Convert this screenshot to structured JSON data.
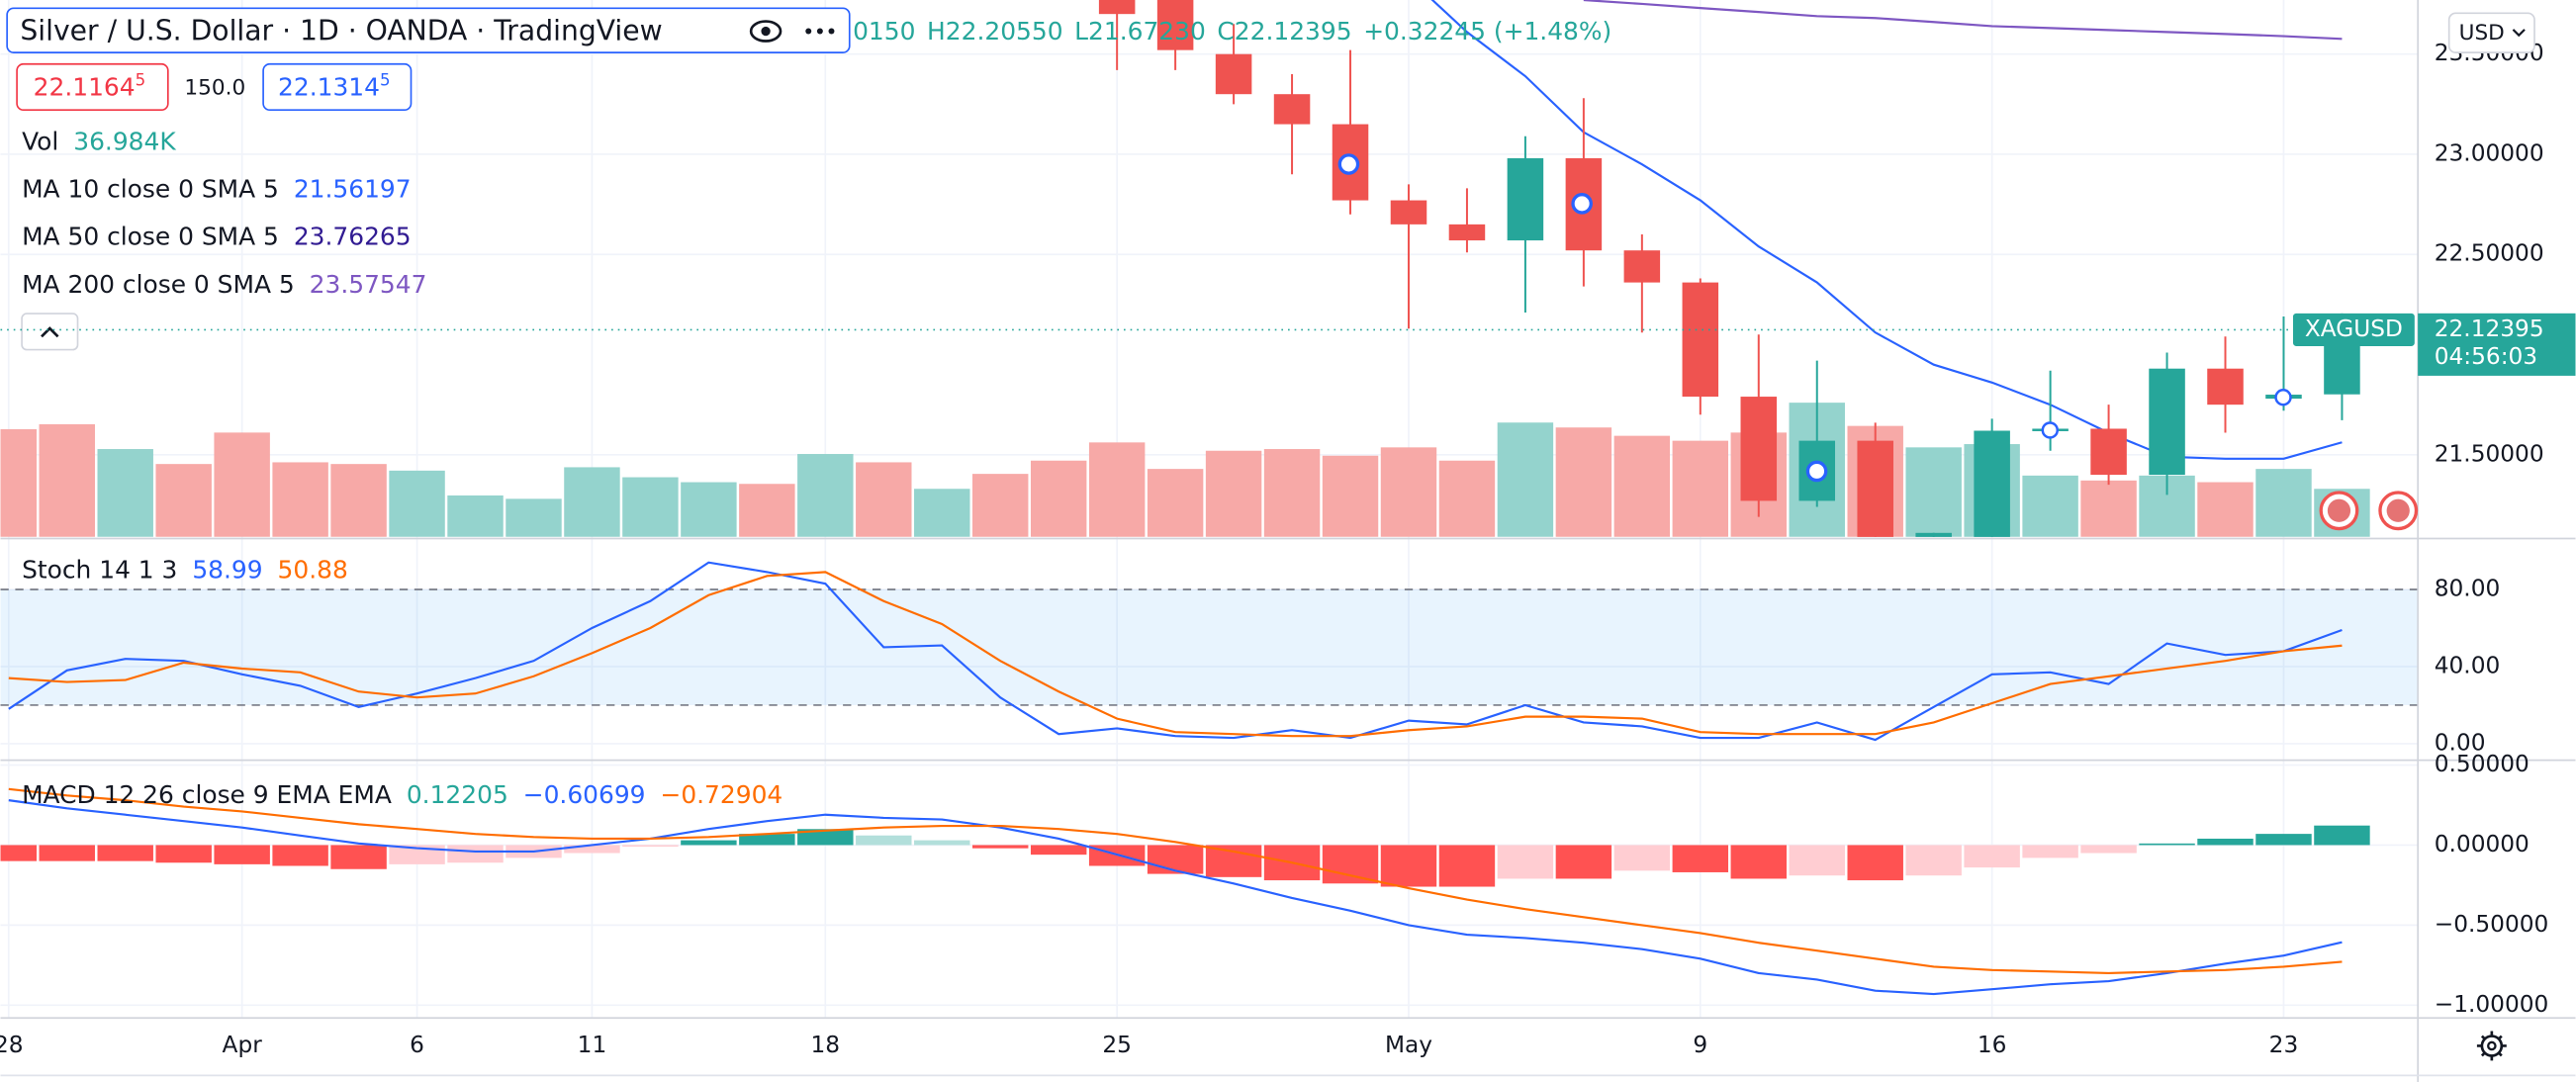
{
  "header": {
    "title": "Silver / U.S. Dollar · 1D · OANDA · TradingView",
    "ohlc": [
      "0150",
      "H22.20550",
      "L21.67230",
      "C22.12395",
      "+0.32245 (+1.48%)"
    ],
    "currency": "USD"
  },
  "quote": {
    "bid": "22.1164",
    "bid_sup": "5",
    "spread": "150.0",
    "ask": "22.1314",
    "ask_sup": "5"
  },
  "chart_data": [
    {
      "type": "candlestick",
      "categories": [
        "28",
        null,
        null,
        null,
        "Apr",
        null,
        null,
        "6",
        null,
        null,
        "11",
        null,
        null,
        null,
        "18",
        null,
        null,
        null,
        null,
        "25",
        null,
        null,
        null,
        null,
        "May",
        null,
        null,
        null,
        null,
        "9",
        null,
        null,
        null,
        null,
        "16",
        null,
        null,
        null,
        null,
        "23",
        null
      ],
      "open": [
        null,
        null,
        null,
        null,
        null,
        null,
        null,
        null,
        null,
        null,
        null,
        null,
        null,
        null,
        null,
        null,
        null,
        null,
        null,
        23.85,
        23.9,
        23.5,
        23.3,
        23.15,
        22.77,
        22.65,
        22.57,
        22.98,
        22.52,
        22.36,
        21.79,
        21.27,
        21.57,
        21.0,
        21.05,
        21.62,
        21.63,
        21.4,
        21.93,
        21.78,
        21.8015
      ],
      "high": [
        null,
        null,
        null,
        null,
        null,
        null,
        null,
        null,
        null,
        null,
        null,
        null,
        null,
        null,
        null,
        null,
        null,
        null,
        null,
        23.95,
        23.95,
        23.65,
        23.4,
        23.52,
        22.85,
        22.83,
        23.09,
        23.28,
        22.6,
        22.38,
        22.1,
        21.97,
        21.66,
        21.11,
        21.68,
        21.92,
        21.75,
        22.01,
        22.09,
        22.19,
        22.2055
      ],
      "low": [
        null,
        null,
        null,
        null,
        null,
        null,
        null,
        null,
        null,
        null,
        null,
        null,
        null,
        null,
        null,
        null,
        null,
        null,
        null,
        23.42,
        23.42,
        23.25,
        22.9,
        22.7,
        22.13,
        22.51,
        22.21,
        22.34,
        22.11,
        21.7,
        21.19,
        21.24,
        20.9,
        20.9,
        20.95,
        21.52,
        21.35,
        21.3,
        21.61,
        21.72,
        21.6723
      ],
      "close": [
        null,
        null,
        null,
        null,
        null,
        null,
        null,
        null,
        null,
        null,
        null,
        null,
        null,
        null,
        null,
        null,
        null,
        null,
        null,
        23.7,
        23.52,
        23.3,
        23.15,
        22.77,
        22.65,
        22.57,
        22.98,
        22.52,
        22.36,
        21.79,
        21.27,
        21.57,
        21.0,
        21.11,
        21.62,
        21.63,
        21.4,
        21.93,
        21.75,
        21.8,
        22.12395
      ],
      "up_color": "#26a69a",
      "down_color": "#ef5350",
      "ylim": [
        21.09,
        23.77
      ],
      "yticks": [
        {
          "value": 23.5,
          "label": "23.50000"
        },
        {
          "value": 23,
          "label": "23.00000"
        },
        {
          "value": 22.5,
          "label": "22.50000"
        },
        {
          "value": 21.5,
          "label": "21.50000"
        }
      ],
      "grid": true,
      "last_price": 22.12395,
      "last_label": {
        "symbol": "XAGUSD",
        "price": "22.12395",
        "countdown": "04:56:03"
      },
      "volume": {
        "values": [
          82.9,
          86.7,
          67.6,
          56.1,
          80.3,
          57.4,
          56.1,
          51.0,
          31.9,
          29.3,
          53.6,
          45.9,
          42.1,
          40.8,
          63.8,
          57.4,
          37.0,
          48.5,
          58.7,
          72.7,
          52.3,
          66.3,
          67.6,
          62.5,
          68.9,
          58.7,
          88.0,
          84.2,
          77.8,
          74.0,
          80.3,
          103.3,
          85.4,
          68.9,
          71.4,
          47.2,
          43.4,
          47.2,
          42.1,
          52.3,
          36.984
        ],
        "colors": [
          "#f7a9a7",
          "#f7a9a7",
          "#94d3cd",
          "#f7a9a7",
          "#f7a9a7",
          "#f7a9a7",
          "#f7a9a7",
          "#94d3cd",
          "#94d3cd",
          "#94d3cd",
          "#94d3cd",
          "#94d3cd",
          "#94d3cd",
          "#f7a9a7",
          "#94d3cd",
          "#f7a9a7",
          "#94d3cd",
          "#f7a9a7",
          "#f7a9a7",
          "#f7a9a7",
          "#f7a9a7",
          "#f7a9a7",
          "#f7a9a7",
          "#f7a9a7",
          "#f7a9a7",
          "#f7a9a7",
          "#94d3cd",
          "#f7a9a7",
          "#f7a9a7",
          "#f7a9a7",
          "#f7a9a7",
          "#94d3cd",
          "#f7a9a7",
          "#94d3cd",
          "#94d3cd",
          "#94d3cd",
          "#f7a9a7",
          "#94d3cd",
          "#f7a9a7",
          "#94d3cd",
          "#94d3cd"
        ]
      },
      "series": [
        {
          "color": "#2962ff",
          "values": [
            null,
            null,
            null,
            null,
            null,
            null,
            null,
            null,
            null,
            null,
            null,
            null,
            null,
            null,
            null,
            null,
            null,
            null,
            null,
            null,
            null,
            null,
            null,
            null,
            23.88,
            23.61,
            23.39,
            23.11,
            22.95,
            22.77,
            22.54,
            22.36,
            22.11,
            21.95,
            21.86,
            21.75,
            21.61,
            21.49,
            21.48,
            21.48,
            21.56197
          ]
        },
        {
          "color": "#7e57c2",
          "values": [
            null,
            null,
            null,
            null,
            null,
            null,
            null,
            null,
            null,
            null,
            null,
            null,
            null,
            null,
            null,
            null,
            null,
            null,
            null,
            null,
            null,
            null,
            null,
            null,
            null,
            null,
            null,
            23.77,
            23.75,
            23.73,
            23.71,
            23.69,
            23.68,
            23.66,
            23.64,
            23.63,
            23.62,
            23.61,
            23.6,
            23.59,
            23.57547
          ]
        }
      ],
      "legend": [
        {
          "label": "Vol",
          "value": "36.984K",
          "color": "#26a69a"
        },
        {
          "label": "MA 10 close 0 SMA 5",
          "value": "21.56197",
          "color": "#2962ff"
        },
        {
          "label": "MA 50 close 0 SMA 5",
          "value": "23.76265",
          "color": "#311b92"
        },
        {
          "label": "MA 200 close 0 SMA 5",
          "value": "23.57547",
          "color": "#7e57c2"
        }
      ]
    },
    {
      "type": "line",
      "ylim": [
        -7.7,
        104.7
      ],
      "yticks": [
        {
          "value": 80,
          "label": "80.00"
        },
        {
          "value": 40,
          "label": "40.00"
        },
        {
          "value": 0,
          "label": "0.00"
        }
      ],
      "grid": true,
      "bands": [
        80,
        20
      ],
      "band_fill": "rgba(33,150,243,0.1)",
      "series": [
        {
          "color": "#2962ff",
          "values": [
            18,
            38,
            44,
            43,
            36,
            30,
            19,
            26,
            34,
            43,
            60,
            74,
            94,
            89,
            83,
            50,
            51,
            24,
            5,
            8,
            4,
            3,
            7,
            3,
            12,
            10,
            20,
            11,
            9,
            3,
            3,
            11,
            2,
            19,
            36,
            37,
            31,
            52,
            46,
            48,
            58.99
          ]
        },
        {
          "color": "#ff6d00",
          "values": [
            34,
            32,
            33,
            42,
            39,
            37,
            27,
            24,
            26,
            35,
            47,
            60,
            77,
            87,
            89,
            74,
            62,
            43,
            27,
            13,
            6,
            5,
            4,
            4,
            7,
            9,
            14,
            14,
            13,
            6,
            5,
            5,
            5,
            11,
            21,
            31,
            35,
            39,
            43,
            48,
            50.88
          ]
        }
      ],
      "legend": {
        "label": "Stoch 14 1 3",
        "values": [
          "58.99",
          "50.88"
        ]
      }
    },
    {
      "type": "macd",
      "ylim": [
        -1.08,
        0.52
      ],
      "yticks": [
        {
          "value": 0.5,
          "label": "0.50000"
        },
        {
          "value": 0,
          "label": "0.00000"
        },
        {
          "value": -0.5,
          "label": "−0.50000"
        },
        {
          "value": -1,
          "label": "−1.00000"
        }
      ],
      "grid": true,
      "histogram": [
        -0.1,
        -0.1,
        -0.1,
        -0.11,
        -0.12,
        -0.13,
        -0.15,
        -0.12,
        -0.11,
        -0.08,
        -0.05,
        -0.01,
        0.03,
        0.07,
        0.1,
        0.06,
        0.03,
        -0.02,
        -0.06,
        -0.13,
        -0.18,
        -0.2,
        -0.22,
        -0.24,
        -0.26,
        -0.26,
        -0.21,
        -0.21,
        -0.16,
        -0.17,
        -0.21,
        -0.19,
        -0.22,
        -0.19,
        -0.14,
        -0.08,
        -0.05,
        0.01,
        0.04,
        0.07,
        0.12205
      ],
      "histogram_colors": {
        "rise_above": "#26a69a",
        "fall_above": "#b2dfdb",
        "fall_below": "#ff5252",
        "rise_below": "#ffcdd2"
      },
      "series": [
        {
          "color": "#2962ff",
          "values": [
            0.28,
            0.23,
            0.19,
            0.15,
            0.11,
            0.06,
            0.01,
            -0.02,
            -0.04,
            -0.04,
            0.0,
            0.04,
            0.1,
            0.15,
            0.19,
            0.17,
            0.16,
            0.11,
            0.04,
            -0.06,
            -0.16,
            -0.24,
            -0.33,
            -0.41,
            -0.5,
            -0.56,
            -0.58,
            -0.61,
            -0.65,
            -0.71,
            -0.8,
            -0.84,
            -0.91,
            -0.93,
            -0.9,
            -0.87,
            -0.85,
            -0.8,
            -0.74,
            -0.69,
            -0.60699
          ]
        },
        {
          "color": "#ff6d00",
          "values": [
            0.35,
            0.31,
            0.28,
            0.24,
            0.21,
            0.17,
            0.13,
            0.1,
            0.07,
            0.05,
            0.04,
            0.04,
            0.05,
            0.07,
            0.09,
            0.11,
            0.12,
            0.12,
            0.1,
            0.07,
            0.02,
            -0.04,
            -0.11,
            -0.19,
            -0.27,
            -0.34,
            -0.4,
            -0.45,
            -0.5,
            -0.55,
            -0.61,
            -0.66,
            -0.71,
            -0.76,
            -0.78,
            -0.79,
            -0.8,
            -0.79,
            -0.78,
            -0.76,
            -0.72904
          ]
        }
      ],
      "legend": {
        "label": "MACD 12 26 close 9 EMA EMA",
        "values": [
          "0.12205",
          "−0.60699",
          "−0.72904"
        ]
      }
    }
  ]
}
